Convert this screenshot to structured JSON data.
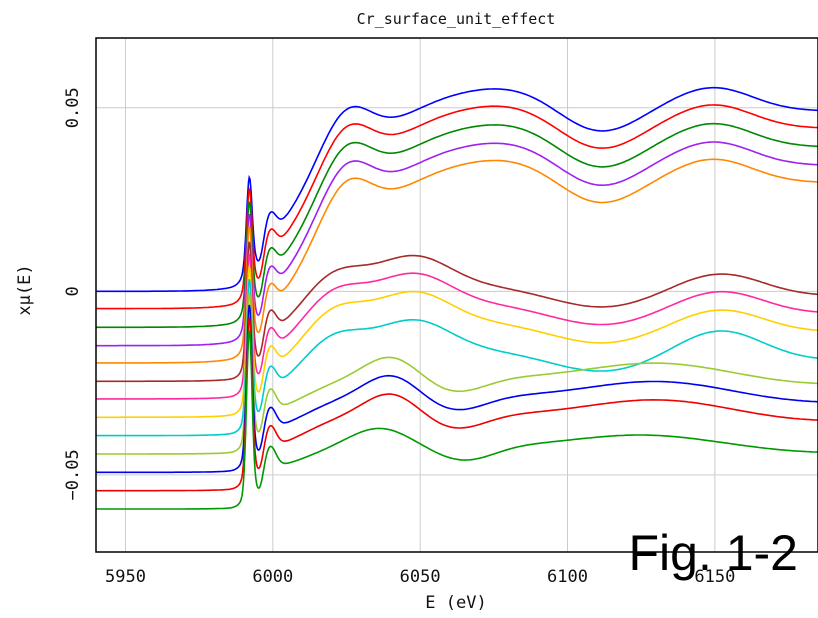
{
  "chart_data": {
    "type": "line",
    "title": "Cr_surface_unit_effect",
    "xlabel": "E (eV)",
    "ylabel": "xμ(E)",
    "annotation": "Fig. 1-2",
    "xlim": [
      5940,
      6185
    ],
    "ylim": [
      -0.071,
      0.069
    ],
    "xticks": [
      5950,
      6000,
      6050,
      6100,
      6150
    ],
    "xtick_labels": [
      "5950",
      "6000",
      "6050",
      "6100",
      "6150"
    ],
    "yticks": [
      -0.05,
      0,
      0.05
    ],
    "ytick_labels": [
      "−0.05",
      "0",
      "0.05"
    ],
    "grid": true,
    "edge": 5992,
    "series": [
      {
        "color": "#0000ff",
        "offset": 0.0,
        "pre": 0.0,
        "peak": 0.05,
        "variant": "A"
      },
      {
        "color": "#ff0000",
        "offset": -0.0047,
        "pre": -0.0047,
        "peak": 0.048,
        "variant": "A"
      },
      {
        "color": "#008800",
        "offset": -0.0098,
        "pre": -0.0098,
        "peak": 0.046,
        "variant": "A"
      },
      {
        "color": "#a020f0",
        "offset": -0.0148,
        "pre": -0.0148,
        "peak": 0.044,
        "variant": "A"
      },
      {
        "color": "#ff8800",
        "offset": -0.0195,
        "pre": -0.0195,
        "peak": 0.042,
        "variant": "A"
      },
      {
        "color": "#a52a2a",
        "offset": -0.0245,
        "pre": -0.0245,
        "peak": 0.04,
        "variant": "B"
      },
      {
        "color": "#ff2aa0",
        "offset": -0.0293,
        "pre": -0.0293,
        "peak": 0.038,
        "variant": "B"
      },
      {
        "color": "#ffd000",
        "offset": -0.0343,
        "pre": -0.0343,
        "peak": 0.036,
        "variant": "B"
      },
      {
        "color": "#00cccc",
        "offset": -0.0393,
        "pre": -0.0393,
        "peak": 0.034,
        "variant": "B2"
      },
      {
        "color": "#99cc33",
        "offset": -0.0443,
        "pre": -0.0443,
        "peak": 0.032,
        "variant": "C"
      },
      {
        "color": "#0000ee",
        "offset": -0.0493,
        "pre": -0.0493,
        "peak": 0.03,
        "variant": "C"
      },
      {
        "color": "#ee0000",
        "offset": -0.0543,
        "pre": -0.0543,
        "peak": 0.028,
        "variant": "C"
      },
      {
        "color": "#009900",
        "offset": -0.0593,
        "pre": -0.0593,
        "peak": 0.026,
        "variant": "D"
      }
    ]
  }
}
